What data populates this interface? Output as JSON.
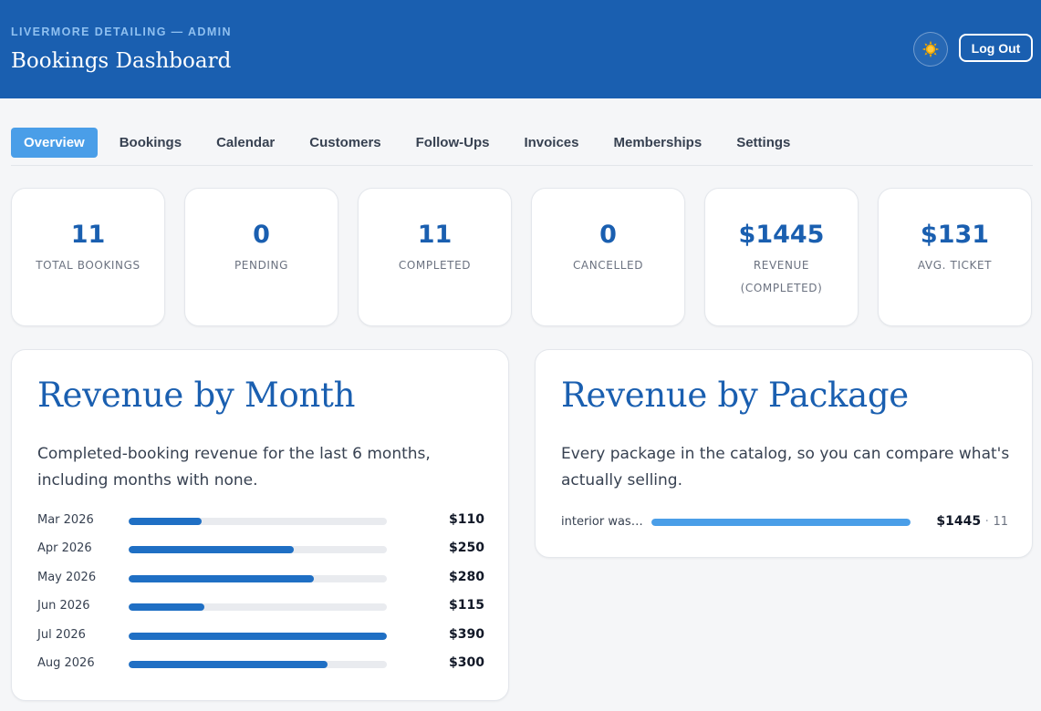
{
  "header": {
    "brand": "LIVERMORE DETAILING — ADMIN",
    "title": "Bookings Dashboard",
    "theme_icon": "sun-icon",
    "logout_label": "Log Out"
  },
  "tabs": [
    {
      "label": "Overview",
      "active": true
    },
    {
      "label": "Bookings",
      "active": false
    },
    {
      "label": "Calendar",
      "active": false
    },
    {
      "label": "Customers",
      "active": false
    },
    {
      "label": "Follow-Ups",
      "active": false
    },
    {
      "label": "Invoices",
      "active": false
    },
    {
      "label": "Memberships",
      "active": false
    },
    {
      "label": "Settings",
      "active": false
    }
  ],
  "stats": [
    {
      "value": "11",
      "label": "TOTAL BOOKINGS"
    },
    {
      "value": "0",
      "label": "PENDING"
    },
    {
      "value": "11",
      "label": "COMPLETED"
    },
    {
      "value": "0",
      "label": "CANCELLED"
    },
    {
      "value": "$1445",
      "label": "REVENUE (COMPLETED)"
    },
    {
      "value": "$131",
      "label": "AVG. TICKET"
    }
  ],
  "revenue_by_month": {
    "title": "Revenue by Month",
    "subtitle": "Completed-booking revenue for the last 6 months, including months with none.",
    "rows": [
      {
        "label": "Mar 2026",
        "value": 110,
        "display": "$110"
      },
      {
        "label": "Apr 2026",
        "value": 250,
        "display": "$250"
      },
      {
        "label": "May 2026",
        "value": 280,
        "display": "$280"
      },
      {
        "label": "Jun 2026",
        "value": 115,
        "display": "$115"
      },
      {
        "label": "Jul 2026",
        "value": 390,
        "display": "$390"
      },
      {
        "label": "Aug 2026",
        "value": 300,
        "display": "$300"
      }
    ],
    "max": 390
  },
  "revenue_by_package": {
    "title": "Revenue by Package",
    "subtitle": "Every package in the catalog, so you can compare what's actually selling.",
    "rows": [
      {
        "label": "interior washi...",
        "fill_fraction": 1.0,
        "amount": "$1445",
        "separator": "·",
        "count": "11"
      }
    ]
  },
  "colors": {
    "header_bg": "#1a5fb0",
    "accent": "#4a9ee8",
    "bar": "#1f6fc4",
    "title": "#1a5fb0"
  }
}
